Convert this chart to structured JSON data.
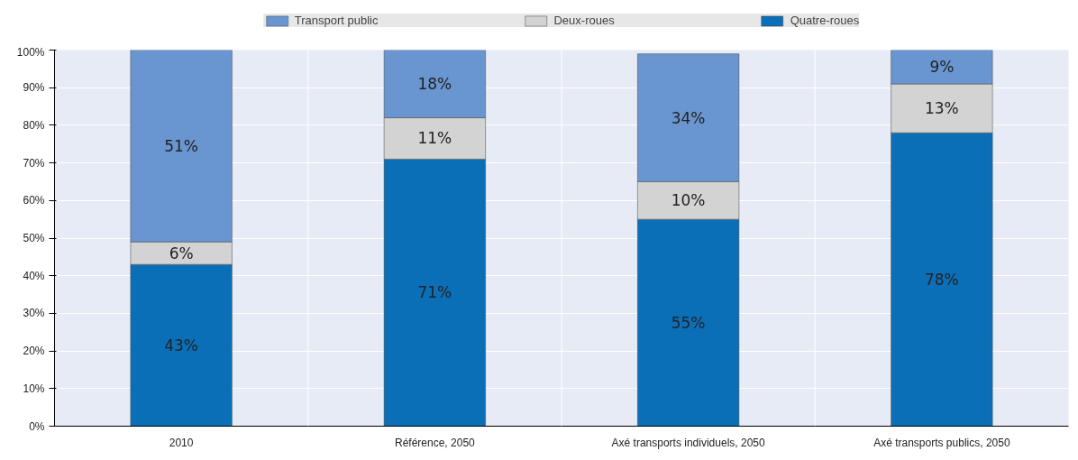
{
  "chart_data": {
    "type": "bar",
    "stacked": true,
    "legend": "top",
    "grid": "y",
    "categories": [
      "2010",
      "Référence, 2050",
      "Axé transports individuels, 2050",
      "Axé transports publics, 2050"
    ],
    "series": [
      {
        "name": "Quatre-roues",
        "color": "#0b6fb8",
        "values": [
          43,
          71,
          55,
          78
        ],
        "value_labels": [
          "43%",
          "71%",
          "55%",
          "78%"
        ]
      },
      {
        "name": "Deux-roues",
        "color": "#d3d3d3",
        "values": [
          6,
          11,
          10,
          13
        ],
        "value_labels": [
          "6%",
          "11%",
          "10%",
          "13%"
        ]
      },
      {
        "name": "Transport public",
        "color": "#6996d0",
        "values": [
          51,
          18,
          34,
          9
        ],
        "value_labels": [
          "51%",
          "18%",
          "34%",
          "9%"
        ]
      }
    ],
    "ylim": [
      0,
      100
    ],
    "yticks": [
      {
        "value": 0,
        "label": "0%"
      },
      {
        "value": 10,
        "label": "10%"
      },
      {
        "value": 20,
        "label": "20%"
      },
      {
        "value": 30,
        "label": "30%"
      },
      {
        "value": 40,
        "label": "40%"
      },
      {
        "value": 50,
        "label": "50%"
      },
      {
        "value": 60,
        "label": "60%"
      },
      {
        "value": 70,
        "label": "70%"
      },
      {
        "value": 80,
        "label": "80%"
      },
      {
        "value": 90,
        "label": "90%"
      },
      {
        "value": 100,
        "label": "100%"
      }
    ]
  }
}
